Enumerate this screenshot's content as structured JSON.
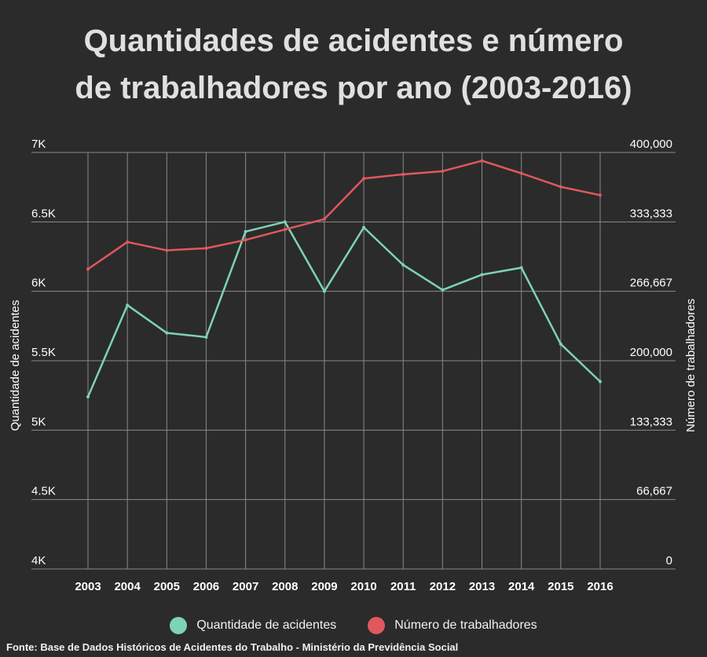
{
  "chart_data": {
    "type": "line",
    "title_lines": [
      "Quantidades de acidentes e número",
      "de trabalhadores por ano (2003-2016)"
    ],
    "x": [
      "2003",
      "2004",
      "2005",
      "2006",
      "2007",
      "2008",
      "2009",
      "2010",
      "2011",
      "2012",
      "2013",
      "2014",
      "2015",
      "2016"
    ],
    "y_left": {
      "label": "Quantidade de acidentes",
      "range": [
        4000,
        7000
      ],
      "ticks": [
        "4K",
        "4.5K",
        "5K",
        "5.5K",
        "6K",
        "6.5K",
        "7K"
      ]
    },
    "y_right": {
      "label": "Número de trabalhadores",
      "range": [
        0,
        400000
      ],
      "ticks": [
        "0",
        "66,667",
        "133,333",
        "200,000",
        "266,667",
        "333,333",
        "400,000"
      ]
    },
    "series": [
      {
        "name": "Quantidade de acidentes",
        "axis": "left",
        "color": "#7dd3b6",
        "values": [
          5240,
          5900,
          5700,
          5670,
          6430,
          6500,
          6000,
          6460,
          6190,
          6010,
          6120,
          6170,
          5620,
          5350
        ]
      },
      {
        "name": "Número de trabalhadores",
        "axis": "right",
        "color": "#e0585d",
        "values": [
          288000,
          314000,
          306000,
          308000,
          316000,
          326000,
          336000,
          375000,
          379000,
          382000,
          392000,
          380000,
          367000,
          359000
        ]
      }
    ],
    "grid": true,
    "legend_position": "bottom"
  },
  "source": "Fonte: Base de Dados Históricos de Acidentes do Trabalho - Ministério da Previdência Social"
}
